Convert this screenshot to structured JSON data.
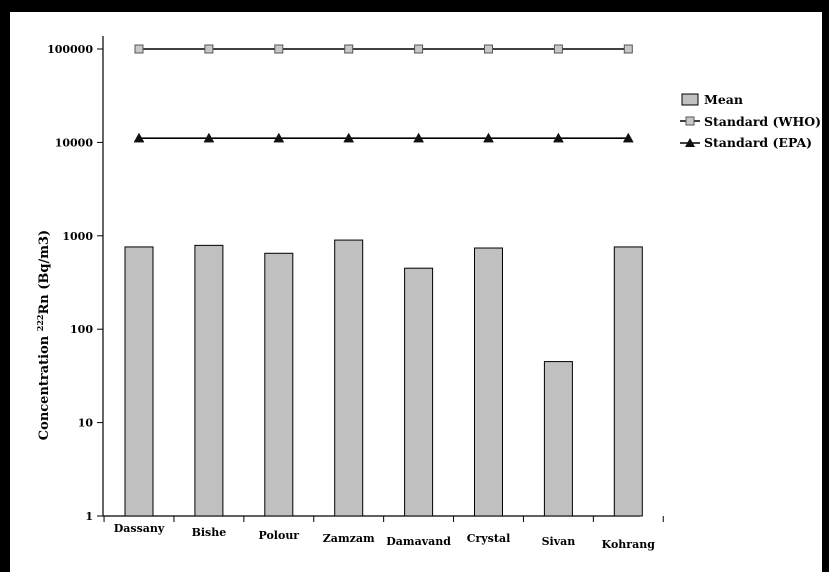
{
  "chart_data": {
    "type": "bar",
    "categories": [
      "Dassany",
      "Bishe",
      "Polour",
      "Zamzam",
      "Damavand",
      "Crystal",
      "Sivan",
      "Kohrang"
    ],
    "series": [
      {
        "name": "Mean",
        "type": "bar",
        "values": [
          760,
          790,
          650,
          900,
          450,
          740,
          45,
          760
        ],
        "color": "#c0c0c0"
      },
      {
        "name": "Standard (WHO)",
        "type": "line",
        "marker": "square",
        "values": [
          100000,
          100000,
          100000,
          100000,
          100000,
          100000,
          100000,
          100000
        ],
        "color": "#000000"
      },
      {
        "name": "Standard (EPA)",
        "type": "line",
        "marker": "triangle",
        "values": [
          11100,
          11100,
          11100,
          11100,
          11100,
          11100,
          11100,
          11100
        ],
        "color": "#000000"
      }
    ],
    "y_scale": "log",
    "ylim": [
      1,
      100000
    ],
    "y_ticks": [
      "1",
      "10",
      "100",
      "1000",
      "10000",
      "100000"
    ],
    "ylabel_prefix": "Concentration ",
    "ylabel_sup": "222",
    "ylabel_suffix": "Rn (Bq/m3)",
    "grid": false,
    "legend_position": "top-right"
  }
}
